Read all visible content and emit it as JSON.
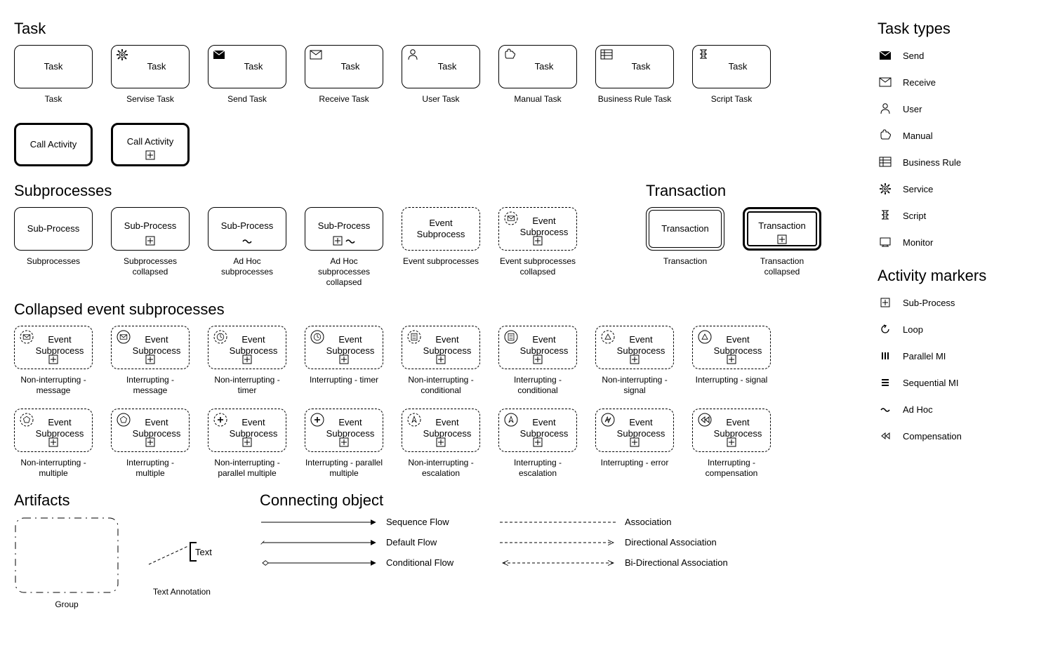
{
  "titles": {
    "task": "Task",
    "subprocesses": "Subprocesses",
    "transaction": "Transaction",
    "collapsed": "Collapsed event subprocesses",
    "artifacts": "Artifacts",
    "connecting": "Connecting object",
    "task_types": "Task types",
    "activity_markers": "Activity markers"
  },
  "labels": {
    "task": "Task",
    "call_activity": "Call Activity",
    "sub_process": "Sub-Process",
    "event_subprocess": "Event\nSubprocess",
    "transaction": "Transaction",
    "group": "Group",
    "text_annotation": "Text Annotation",
    "text": "Text"
  },
  "task_captions": [
    "Task",
    "Servise Task",
    "Send Task",
    "Receive Task",
    "User Task",
    "Manual Task",
    "Business Rule Task",
    "Script Task"
  ],
  "sub_captions": [
    "Subprocesses",
    "Subprocesses collapsed",
    "Ad Hoc subprocesses",
    "Ad Hoc subprocesses collapsed",
    "Event subprocesses",
    "Event subprocesses collapsed"
  ],
  "trans_captions": [
    "Transaction",
    "Transaction collapsed"
  ],
  "collapsed_captions_r1": [
    "Non-interrupting - message",
    "Interrupting - message",
    "Non-interrupting - timer",
    "Interrupting - timer",
    "Non-interrupting - conditional",
    "Interrupting - conditional",
    "Non-interrupting - signal",
    "Interrupting - signal"
  ],
  "collapsed_captions_r2": [
    "Non-interrupting - multiple",
    "Interrupting - multiple",
    "Non-interrupting - parallel multiple",
    "Interrupting - parallel multiple",
    "Non-interrupting - escalation",
    "Interrupting - escalation",
    "Interrupting - error",
    "Interrupting - compensation"
  ],
  "task_types": [
    "Send",
    "Receive",
    "User",
    "Manual",
    "Business Rule",
    "Service",
    "Script",
    "Monitor"
  ],
  "activity_markers": [
    "Sub-Process",
    "Loop",
    "Parallel MI",
    "Sequential MI",
    "Ad Hoc",
    "Compensation"
  ],
  "connecting": {
    "seq": "Sequence Flow",
    "def": "Default Flow",
    "cond": "Conditional Flow",
    "assoc": "Association",
    "dassoc": "Directional Association",
    "bassoc": "Bi-Directional Association"
  },
  "style": {
    "border_color": "#000000",
    "bg": "#ffffff",
    "radius": 10,
    "shape_w": 112,
    "shape_h": 62,
    "font_body": 13,
    "font_caption": 12,
    "font_title": 22
  }
}
